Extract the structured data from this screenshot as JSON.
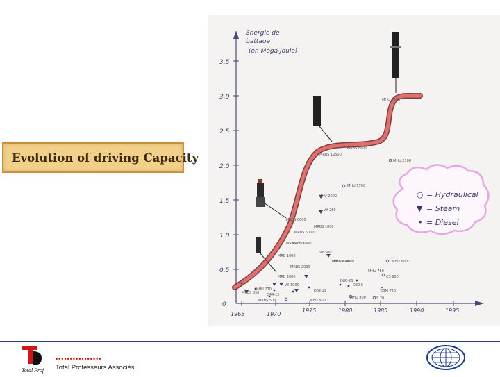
{
  "slide": {
    "title": "Evolution of driving Capacity"
  },
  "chart": {
    "ylabel_lines": [
      "Energie de",
      "battage",
      "(en Méga Joule)"
    ],
    "y_ticks": [
      "0",
      "0,5",
      "1,0",
      "1,5",
      "2,0",
      "2,5",
      "3,0",
      "3,5"
    ],
    "x_ticks": [
      "1965",
      "1970",
      "1975",
      "1980",
      "1985",
      "1990",
      "1995"
    ],
    "legend": [
      {
        "symbol": "○",
        "label": "= Hydraulical"
      },
      {
        "symbol": "▼",
        "label": "= Steam"
      },
      {
        "symbol": "•",
        "label": "= Diesel"
      }
    ],
    "point_labels": [
      "MHU 3000",
      "MHU 2100",
      "MRBS 12500",
      "MRBS 8800",
      "MRBS 6000",
      "MRBS 5000",
      "MRBS 3000",
      "MRBS 1800",
      "MRBS 1500",
      "MRBS 850",
      "MRBS 500",
      "MHU 2000",
      "MHU 1700",
      "MRB 1000",
      "MHU 1000",
      "MRBS 2000",
      "MRB 2000",
      "MHU 500",
      "MHU 600",
      "MHU 750",
      "CS 900",
      "CSM 720",
      "D62-22",
      "D80-23",
      "D80-5",
      "D44-12",
      "MHU 270",
      "HBM 4000",
      "VY 1000",
      "VY 500",
      "VY 250",
      "MHU 800",
      "S 70"
    ],
    "colors": {
      "curve": "#e07070",
      "curve_outline": "#6a1e1e",
      "legend_border": "#e6a6e6",
      "ink": "#3b3b6a"
    }
  },
  "footer": {
    "logo_text": "Total Prof",
    "company": "Total Professeurs Associés",
    "dots": "••••••••••••••••"
  }
}
